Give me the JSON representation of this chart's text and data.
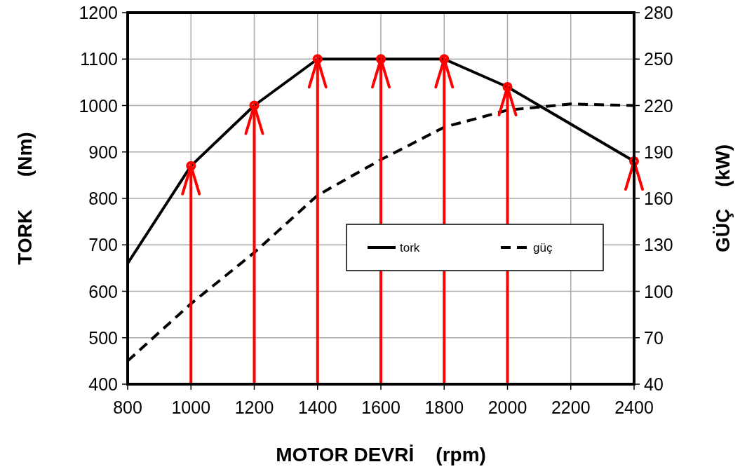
{
  "chart_data": {
    "type": "line",
    "xlabel": "MOTOR DEVRİ    (rpm)",
    "ylabel": "TORK      (Nm)",
    "y2label": "GÜÇ    (kW)",
    "xlim": [
      800,
      2400
    ],
    "xticks": [
      800,
      1000,
      1200,
      1400,
      1600,
      1800,
      2000,
      2200,
      2400
    ],
    "ylim": [
      400,
      1200
    ],
    "yticks": [
      400,
      500,
      600,
      700,
      800,
      900,
      1000,
      1100,
      1200
    ],
    "y2lim": [
      40,
      280
    ],
    "y2ticks": [
      40,
      70,
      100,
      130,
      160,
      190,
      220,
      250,
      280
    ],
    "grid": true,
    "legend": "right",
    "series": [
      {
        "name": "tork",
        "color": "#000000",
        "line_style": "solid",
        "x": [
          800,
          1000,
          1200,
          1400,
          1600,
          1800,
          2000,
          2400
        ],
        "values": [
          660,
          870,
          1000,
          1100,
          1100,
          1100,
          1040,
          880
        ]
      },
      {
        "name": "güç",
        "color": "#000000",
        "line_style": "dashed",
        "axis": "y2",
        "x": [
          800,
          1000,
          1200,
          1400,
          1600,
          1800,
          2000,
          2200,
          2400
        ],
        "values": [
          55,
          92,
          125,
          162,
          185,
          206,
          217,
          221,
          220
        ]
      }
    ]
  }
}
